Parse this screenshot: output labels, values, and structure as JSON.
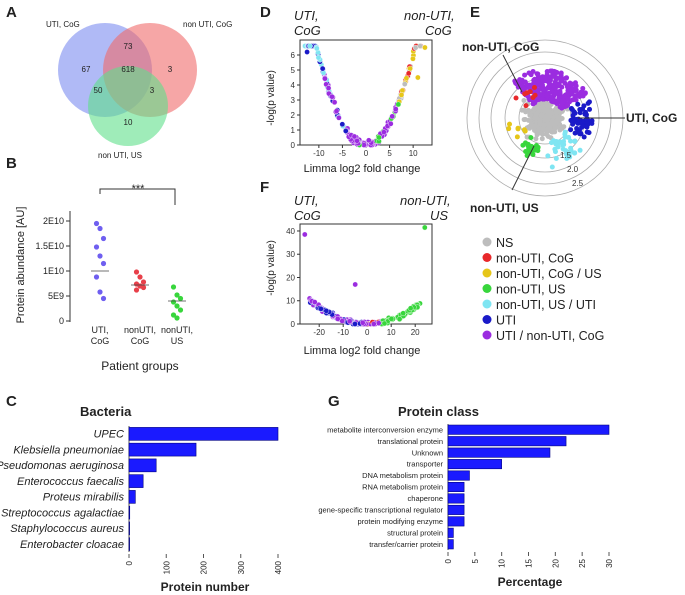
{
  "panel_labels": {
    "A": "A",
    "B": "B",
    "C": "C",
    "D": "D",
    "E": "E",
    "F": "F",
    "G": "G"
  },
  "colors": {
    "venn_uti": "#7b8cf0",
    "venn_non_uti": "#f06a6a",
    "venn_us": "#5fe08a",
    "ns": "#bdbdbd",
    "non_uti_cog": "#e8282a",
    "non_uti_cog_us": "#e6c619",
    "non_uti_us": "#38d63c",
    "non_uti_us_uti": "#7fe5f2",
    "uti": "#1a1ac8",
    "uti_non_uti_cog": "#9b2ce0",
    "bar": "#1a1aff",
    "bar_edge": "#000080"
  },
  "chart_data": [
    {
      "id": "venn",
      "type": "venn",
      "sets": [
        "UTI, CoG",
        "non UTI, CoG",
        "non UTI, US"
      ],
      "regions": {
        "uti_only": "67",
        "non_uti_cog_only": "3",
        "us_only": "10",
        "uti_and_non_uti_cog": "73",
        "uti_and_us": "50",
        "non_uti_cog_and_us": "3",
        "all": "618"
      }
    },
    {
      "id": "abundance",
      "type": "scatter",
      "ylabel": "Protein abundance [AU]",
      "xlabel": "Patient groups",
      "ylim": [
        0,
        22000000000.0
      ],
      "yticks": [
        {
          "v": 0,
          "label": "0"
        },
        {
          "v": 5000000000.0,
          "label": "5E9"
        },
        {
          "v": 10000000000.0,
          "label": "1E10"
        },
        {
          "v": 15000000000.0,
          "label": "1.5E10"
        },
        {
          "v": 20000000000.0,
          "label": "2E10"
        }
      ],
      "significance": "***",
      "groups": [
        {
          "label": "UTI,\nCoG",
          "color": "#6f5ff0",
          "median": 10000000000.0,
          "points": [
            19500000000.0,
            18500000000.0,
            16500000000.0,
            14800000000.0,
            13000000000.0,
            11500000000.0,
            8800000000.0,
            5800000000.0,
            4500000000.0
          ]
        },
        {
          "label": "nonUTI,\nCoG",
          "color": "#e8404a",
          "median": 7200000000.0,
          "points": [
            9800000000.0,
            8800000000.0,
            7800000000.0,
            7400000000.0,
            7000000000.0,
            6700000000.0,
            6200000000.0
          ]
        },
        {
          "label": "nonUTI,\nUS",
          "color": "#38d63c",
          "median": 4000000000.0,
          "points": [
            6800000000.0,
            5200000000.0,
            4500000000.0,
            3800000000.0,
            3000000000.0,
            2200000000.0,
            1200000000.0,
            600000000.0
          ]
        }
      ]
    },
    {
      "id": "volcano_d",
      "type": "scatter",
      "xlabel": "Limma log2 fold change",
      "ylabel": "-log(p value)",
      "xlim": [
        -14,
        14
      ],
      "ylim": [
        0,
        7
      ],
      "xticks": [
        -10,
        -5,
        0,
        5,
        10
      ],
      "yticks": [
        0,
        1,
        2,
        3,
        4,
        5,
        6
      ],
      "left_label": "UTI,\nCoG",
      "right_label": "non-UTI,\nCoG"
    },
    {
      "id": "volcano_f",
      "type": "scatter",
      "xlabel": "Limma log2 fold change",
      "ylabel": "-log(p value)",
      "xlim": [
        -28,
        27
      ],
      "ylim": [
        0,
        43
      ],
      "xticks": [
        -20,
        -10,
        0,
        10,
        20
      ],
      "yticks": [
        0,
        10,
        20,
        30,
        40
      ],
      "left_label": "UTI,\nCoG",
      "right_label": "non-UTI,\nUS"
    },
    {
      "id": "radial",
      "type": "scatter",
      "labels": [
        "non-UTI, CoG",
        "UTI, CoG",
        "non-UTI, US"
      ],
      "ring_ticks": [
        "1.5",
        "2.0",
        "2.5"
      ]
    },
    {
      "id": "legend",
      "type": "legend",
      "entries": [
        {
          "label": "NS",
          "color": "#bdbdbd"
        },
        {
          "label": "non-UTI, CoG",
          "color": "#e8282a"
        },
        {
          "label": "non-UTI, CoG / US",
          "color": "#e6c619"
        },
        {
          "label": "non-UTI, US",
          "color": "#38d63c"
        },
        {
          "label": "non-UTI, US / UTI",
          "color": "#7fe5f2"
        },
        {
          "label": "UTI",
          "color": "#1a1ac8"
        },
        {
          "label": "UTI / non-UTI, CoG",
          "color": "#9b2ce0"
        }
      ]
    },
    {
      "id": "bacteria",
      "type": "bar",
      "title": "Bacteria",
      "xlabel": "Protein number",
      "categories": [
        "UPEC",
        "Klebsiella pneumoniae",
        "Pseudomonas aeruginosa",
        "Enterococcus faecalis",
        "Proteus mirabilis",
        "Streptococcus agalactiae",
        "Staphylococcus aureus",
        "Enterobacter cloacae"
      ],
      "values": [
        400,
        180,
        73,
        38,
        17,
        2,
        1,
        1
      ],
      "xlim": [
        0,
        400
      ],
      "xticks": [
        0,
        100,
        200,
        300,
        400
      ]
    },
    {
      "id": "protein_class",
      "type": "bar",
      "title": "Protein class",
      "xlabel": "Percentage",
      "categories": [
        "metabolite interconversion enzyme",
        "translational protein",
        "Unknown",
        "transporter",
        "DNA metabolism protein",
        "RNA metabolism protein",
        "chaperone",
        "gene-specific transcriptional regulator",
        "protein modifying enzyme",
        "structural protein",
        "transfer/carrier protein"
      ],
      "values": [
        30,
        22,
        19,
        10,
        4,
        3,
        3,
        3,
        3,
        1,
        1
      ],
      "xlim": [
        0,
        30
      ],
      "xticks": [
        0,
        5,
        10,
        15,
        20,
        25,
        30
      ]
    }
  ]
}
